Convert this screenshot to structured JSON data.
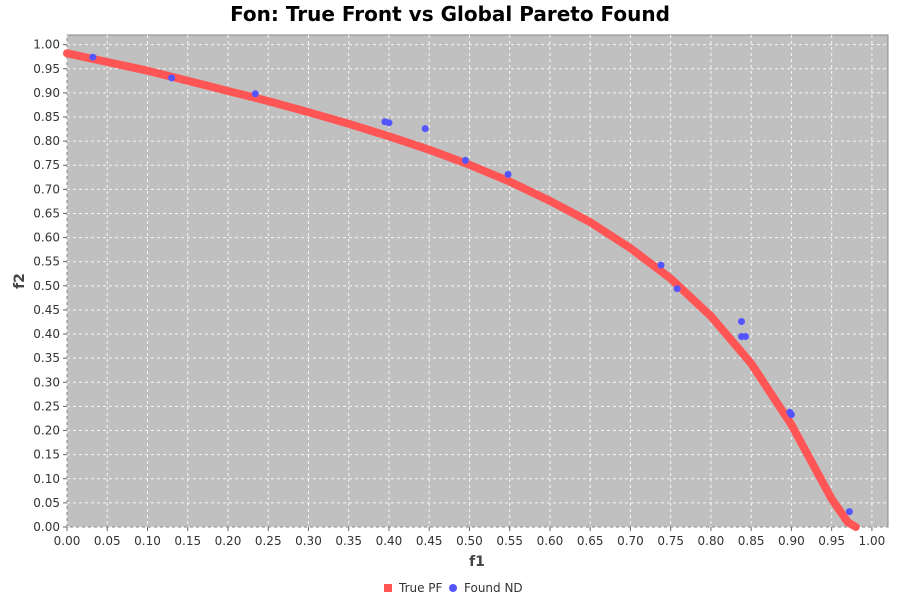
{
  "chart_data": {
    "type": "scatter",
    "title": "Fon: True Front vs Global Pareto Found",
    "xlabel": "f1",
    "ylabel": "f2",
    "xlim": [
      0,
      1.02
    ],
    "ylim": [
      0,
      1.02
    ],
    "x_ticks": [
      "0.00",
      "0.05",
      "0.10",
      "0.15",
      "0.20",
      "0.25",
      "0.30",
      "0.35",
      "0.40",
      "0.45",
      "0.50",
      "0.55",
      "0.60",
      "0.65",
      "0.70",
      "0.75",
      "0.80",
      "0.85",
      "0.90",
      "0.95",
      "1.00"
    ],
    "y_ticks": [
      "0.00",
      "0.05",
      "0.10",
      "0.15",
      "0.20",
      "0.25",
      "0.30",
      "0.35",
      "0.40",
      "0.45",
      "0.50",
      "0.55",
      "0.60",
      "0.65",
      "0.70",
      "0.75",
      "0.80",
      "0.85",
      "0.90",
      "0.95",
      "1.00"
    ],
    "grid": true,
    "legend_position": "bottom",
    "background_color": "#c0c0c0",
    "series": [
      {
        "name": "True PF",
        "kind": "curve",
        "color": "#ff5555",
        "points": [
          [
            0.0,
            0.982
          ],
          [
            0.05,
            0.964
          ],
          [
            0.1,
            0.946
          ],
          [
            0.15,
            0.925
          ],
          [
            0.2,
            0.904
          ],
          [
            0.25,
            0.883
          ],
          [
            0.3,
            0.86
          ],
          [
            0.35,
            0.836
          ],
          [
            0.4,
            0.81
          ],
          [
            0.45,
            0.782
          ],
          [
            0.5,
            0.751
          ],
          [
            0.55,
            0.716
          ],
          [
            0.6,
            0.676
          ],
          [
            0.65,
            0.632
          ],
          [
            0.7,
            0.578
          ],
          [
            0.75,
            0.515
          ],
          [
            0.8,
            0.437
          ],
          [
            0.85,
            0.339
          ],
          [
            0.9,
            0.212
          ],
          [
            0.95,
            0.058
          ],
          [
            0.97,
            0.01
          ],
          [
            0.98,
            0.0
          ]
        ]
      },
      {
        "name": "Found ND",
        "kind": "points",
        "color": "#5555ff",
        "points": [
          [
            0.032,
            0.974
          ],
          [
            0.13,
            0.931
          ],
          [
            0.234,
            0.898
          ],
          [
            0.395,
            0.84
          ],
          [
            0.4,
            0.838
          ],
          [
            0.445,
            0.826
          ],
          [
            0.495,
            0.76
          ],
          [
            0.548,
            0.731
          ],
          [
            0.738,
            0.543
          ],
          [
            0.758,
            0.494
          ],
          [
            0.838,
            0.426
          ],
          [
            0.838,
            0.395
          ],
          [
            0.843,
            0.395
          ],
          [
            0.898,
            0.238
          ],
          [
            0.9,
            0.233
          ],
          [
            0.972,
            0.032
          ]
        ]
      }
    ]
  }
}
